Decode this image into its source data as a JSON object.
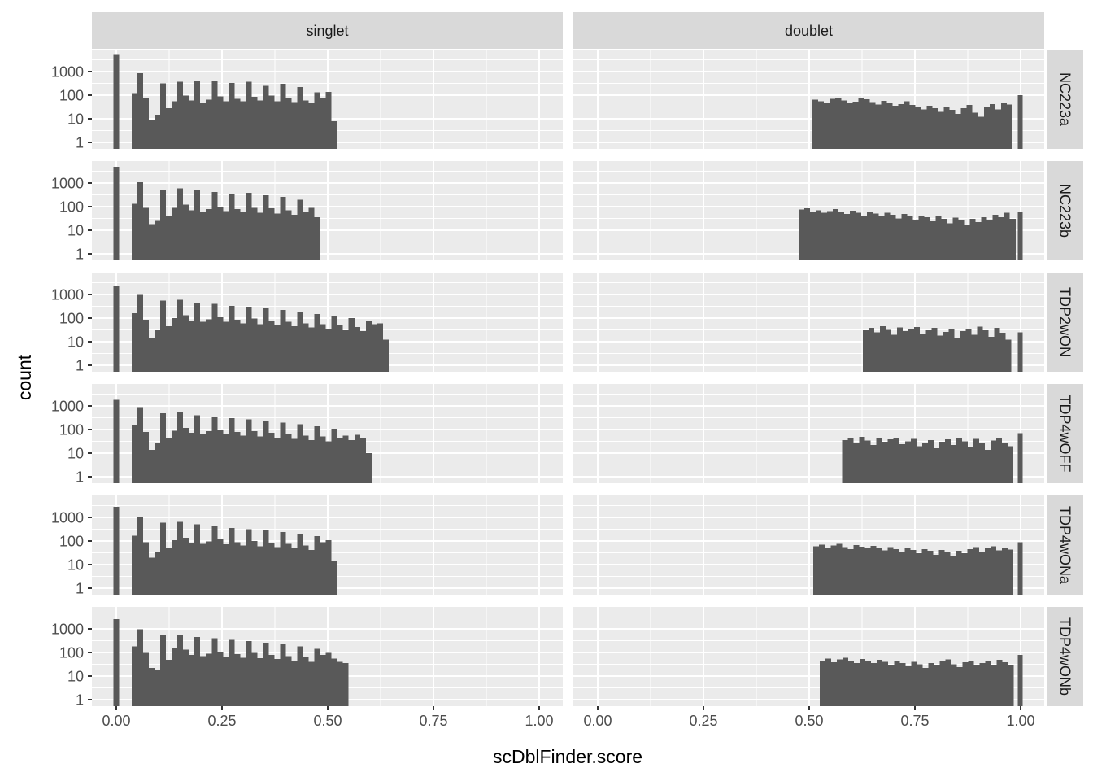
{
  "chart_data": {
    "type": "bar",
    "subtype": "faceted-log-histogram",
    "title": "",
    "xlabel": "scDblFinder.score",
    "ylabel": "count",
    "x_ticks": [
      "0.00",
      "0.25",
      "0.50",
      "0.75",
      "1.00"
    ],
    "x_tick_values": [
      0,
      0.25,
      0.5,
      0.75,
      1.0
    ],
    "y_ticks": [
      "1000",
      "100",
      "10",
      "1"
    ],
    "y_tick_values": [
      1000,
      100,
      10,
      1
    ],
    "y_scale": "log10",
    "y_minor_values": [
      3.162,
      31.62,
      316.2,
      3162
    ],
    "x_minor_values": [
      0.125,
      0.375,
      0.625,
      0.875
    ],
    "xlim": [
      -0.058,
      1.056
    ],
    "grid": true,
    "legend": "none",
    "col_facets": [
      "singlet",
      "doublet"
    ],
    "row_facets": [
      "NC223a",
      "NC223b",
      "TDP2wON",
      "TDP4wOFF",
      "TDP4wONa",
      "TDP4wONb"
    ],
    "binwidth": 0.0135,
    "panels": [
      {
        "row": "NC223a",
        "col": "singlet",
        "spike": {
          "x": -0.007,
          "count": 5500
        },
        "bars": {
          "start": 0.0365,
          "counts": [
            120,
            850,
            75,
            9,
            15,
            320,
            28,
            55,
            370,
            95,
            60,
            420,
            48,
            65,
            400,
            90,
            55,
            330,
            70,
            55,
            370,
            85,
            60,
            250,
            95,
            55,
            300,
            75,
            50,
            220,
            60,
            45,
            130,
            80,
            140,
            8
          ]
        }
      },
      {
        "row": "NC223a",
        "col": "doublet",
        "bars": {
          "start": 0.508,
          "counts": [
            65,
            55,
            48,
            70,
            78,
            60,
            45,
            52,
            75,
            68,
            50,
            40,
            58,
            48,
            35,
            42,
            55,
            38,
            30,
            25,
            35,
            28,
            20,
            32,
            24,
            16,
            28,
            38,
            18,
            12,
            30,
            42,
            25,
            48,
            40
          ]
        },
        "spike": {
          "x": 0.9935,
          "count": 100
        }
      },
      {
        "row": "NC223b",
        "col": "singlet",
        "spike": {
          "x": -0.007,
          "count": 4800
        },
        "bars": {
          "start": 0.0365,
          "counts": [
            130,
            1100,
            90,
            18,
            25,
            500,
            40,
            90,
            600,
            120,
            70,
            480,
            60,
            80,
            420,
            100,
            65,
            350,
            80,
            60,
            380,
            90,
            55,
            300,
            85,
            50,
            260,
            70,
            45,
            200,
            60,
            90,
            35
          ]
        }
      },
      {
        "row": "NC223b",
        "col": "doublet",
        "bars": {
          "start": 0.475,
          "counts": [
            75,
            85,
            60,
            70,
            55,
            65,
            80,
            58,
            48,
            68,
            55,
            42,
            60,
            50,
            38,
            55,
            45,
            32,
            48,
            40,
            28,
            42,
            35,
            24,
            38,
            30,
            20,
            34,
            26,
            16,
            30,
            22,
            36,
            28,
            45,
            35,
            55,
            30
          ]
        },
        "spike": {
          "x": 0.9935,
          "count": 60
        }
      },
      {
        "row": "TDP2wON",
        "col": "singlet",
        "spike": {
          "x": -0.007,
          "count": 2300
        },
        "bars": {
          "start": 0.0365,
          "counts": [
            160,
            1050,
            85,
            15,
            30,
            550,
            45,
            100,
            600,
            130,
            80,
            450,
            70,
            90,
            400,
            110,
            70,
            330,
            85,
            60,
            300,
            95,
            55,
            260,
            80,
            50,
            220,
            70,
            45,
            180,
            60,
            40,
            150,
            55,
            35,
            120,
            48,
            30,
            100,
            42,
            28,
            80,
            55,
            60,
            12
          ]
        }
      },
      {
        "row": "TDP2wON",
        "col": "doublet",
        "bars": {
          "start": 0.627,
          "counts": [
            30,
            38,
            25,
            45,
            32,
            20,
            40,
            28,
            35,
            42,
            22,
            30,
            38,
            18,
            26,
            34,
            15,
            28,
            36,
            20,
            44,
            30,
            16,
            38,
            24,
            12
          ]
        },
        "spike": {
          "x": 0.9935,
          "count": 25
        }
      },
      {
        "row": "TDP4wOFF",
        "col": "singlet",
        "spike": {
          "x": -0.007,
          "count": 1800
        },
        "bars": {
          "start": 0.0365,
          "counts": [
            150,
            900,
            80,
            14,
            28,
            480,
            42,
            90,
            520,
            115,
            72,
            400,
            65,
            85,
            360,
            100,
            62,
            300,
            78,
            55,
            270,
            85,
            50,
            230,
            72,
            45,
            200,
            62,
            40,
            165,
            55,
            36,
            135,
            50,
            32,
            110,
            45,
            55,
            35,
            60,
            42,
            10
          ]
        }
      },
      {
        "row": "TDP4wOFF",
        "col": "doublet",
        "bars": {
          "start": 0.578,
          "counts": [
            35,
            42,
            28,
            48,
            34,
            22,
            44,
            30,
            38,
            45,
            24,
            32,
            40,
            20,
            28,
            36,
            16,
            30,
            38,
            22,
            46,
            32,
            18,
            40,
            26,
            14,
            34,
            44,
            28,
            20
          ]
        },
        "spike": {
          "x": 0.9935,
          "count": 70
        }
      },
      {
        "row": "TDP4wONa",
        "col": "singlet",
        "spike": {
          "x": -0.007,
          "count": 2800
        },
        "bars": {
          "start": 0.0365,
          "counts": [
            170,
            1000,
            90,
            20,
            35,
            600,
            50,
            110,
            650,
            140,
            85,
            500,
            75,
            95,
            430,
            115,
            72,
            360,
            90,
            65,
            320,
            100,
            60,
            280,
            85,
            55,
            240,
            75,
            48,
            200,
            65,
            42,
            160,
            90,
            110,
            15
          ]
        }
      },
      {
        "row": "TDP4wONa",
        "col": "doublet",
        "bars": {
          "start": 0.51,
          "counts": [
            60,
            70,
            50,
            65,
            75,
            55,
            45,
            68,
            58,
            48,
            62,
            52,
            40,
            56,
            46,
            35,
            50,
            42,
            30,
            46,
            38,
            26,
            42,
            34,
            22,
            38,
            30,
            45,
            55,
            35,
            48,
            60,
            40,
            52,
            44
          ]
        },
        "spike": {
          "x": 0.9935,
          "count": 90
        }
      },
      {
        "row": "TDP4wONb",
        "col": "singlet",
        "spike": {
          "x": -0.007,
          "count": 2600
        },
        "bars": {
          "start": 0.0365,
          "counts": [
            180,
            950,
            95,
            22,
            18,
            520,
            48,
            160,
            580,
            130,
            80,
            460,
            70,
            90,
            400,
            108,
            68,
            340,
            85,
            60,
            300,
            95,
            58,
            260,
            80,
            52,
            220,
            70,
            45,
            180,
            62,
            40,
            145,
            80,
            95,
            55,
            40,
            35
          ]
        }
      },
      {
        "row": "TDP4wONb",
        "col": "doublet",
        "bars": {
          "start": 0.525,
          "counts": [
            45,
            55,
            38,
            50,
            60,
            42,
            35,
            52,
            44,
            36,
            48,
            40,
            30,
            44,
            36,
            26,
            40,
            32,
            22,
            36,
            28,
            42,
            50,
            32,
            24,
            38,
            46,
            28,
            35,
            44,
            30,
            48,
            38,
            28
          ]
        },
        "spike": {
          "x": 0.9935,
          "count": 80
        }
      }
    ],
    "colors": {
      "bar": "#595959",
      "panel_bg": "#EBEBEB",
      "strip_bg": "#D9D9D9",
      "grid": "#FFFFFF",
      "tick_mark": "#333333",
      "tick_label": "#4D4D4D",
      "strip_text": "#1A1A1A",
      "axis_title": "#000000",
      "background": "#FFFFFF"
    }
  }
}
